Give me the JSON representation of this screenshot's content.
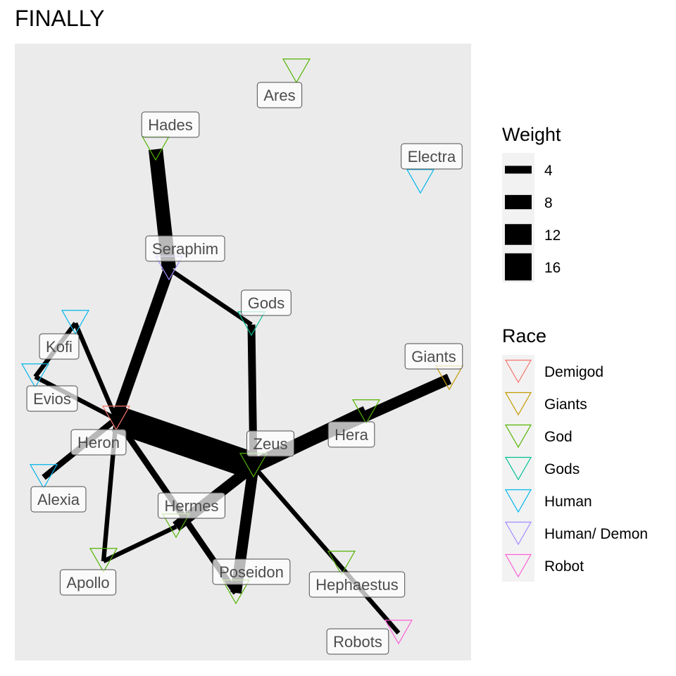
{
  "title": "FINALLY",
  "legend": {
    "weight_title": "Weight",
    "weight_items": [
      4,
      8,
      12,
      16
    ],
    "race_title": "Race",
    "race_items": [
      {
        "name": "Demigod",
        "color": "#F8766D"
      },
      {
        "name": "Giants",
        "color": "#C49A00"
      },
      {
        "name": "God",
        "color": "#53B400"
      },
      {
        "name": "Gods",
        "color": "#00C094"
      },
      {
        "name": "Human",
        "color": "#00B6EB"
      },
      {
        "name": "Human/ Demon",
        "color": "#A58AFF"
      },
      {
        "name": "Robot",
        "color": "#FB61D7"
      }
    ]
  },
  "nodes": [
    {
      "id": "Ares",
      "race": "God"
    },
    {
      "id": "Hades",
      "race": "God"
    },
    {
      "id": "Electra",
      "race": "Human"
    },
    {
      "id": "Seraphim",
      "race": "Human/ Demon"
    },
    {
      "id": "Gods",
      "race": "Gods"
    },
    {
      "id": "Kofi",
      "race": "Human"
    },
    {
      "id": "Giants",
      "race": "Giants"
    },
    {
      "id": "Evios",
      "race": "Human"
    },
    {
      "id": "Heron",
      "race": "Demigod"
    },
    {
      "id": "Zeus",
      "race": "God"
    },
    {
      "id": "Hera",
      "race": "God"
    },
    {
      "id": "Alexia",
      "race": "Human"
    },
    {
      "id": "Hermes",
      "race": "God"
    },
    {
      "id": "Apollo",
      "race": "God"
    },
    {
      "id": "Poseidon",
      "race": "God"
    },
    {
      "id": "Hephaestus",
      "race": "God"
    },
    {
      "id": "Robots",
      "race": "Robot"
    }
  ],
  "edges": [
    {
      "from": "Hades",
      "to": "Seraphim",
      "weight": 8
    },
    {
      "from": "Seraphim",
      "to": "Heron",
      "weight": 6
    },
    {
      "from": "Seraphim",
      "to": "Gods",
      "weight": 2
    },
    {
      "from": "Gods",
      "to": "Zeus",
      "weight": 4
    },
    {
      "from": "Kofi",
      "to": "Heron",
      "weight": 2
    },
    {
      "from": "Kofi",
      "to": "Evios",
      "weight": 2
    },
    {
      "from": "Evios",
      "to": "Heron",
      "weight": 2
    },
    {
      "from": "Heron",
      "to": "Zeus",
      "weight": 16
    },
    {
      "from": "Heron",
      "to": "Alexia",
      "weight": 3
    },
    {
      "from": "Heron",
      "to": "Apollo",
      "weight": 2
    },
    {
      "from": "Heron",
      "to": "Poseidon",
      "weight": 3
    },
    {
      "from": "Zeus",
      "to": "Hera",
      "weight": 8
    },
    {
      "from": "Zeus",
      "to": "Giants",
      "weight": 6
    },
    {
      "from": "Zeus",
      "to": "Hermes",
      "weight": 6
    },
    {
      "from": "Zeus",
      "to": "Poseidon",
      "weight": 6
    },
    {
      "from": "Zeus",
      "to": "Robots",
      "weight": 2
    },
    {
      "from": "Hermes",
      "to": "Apollo",
      "weight": 2
    }
  ]
}
